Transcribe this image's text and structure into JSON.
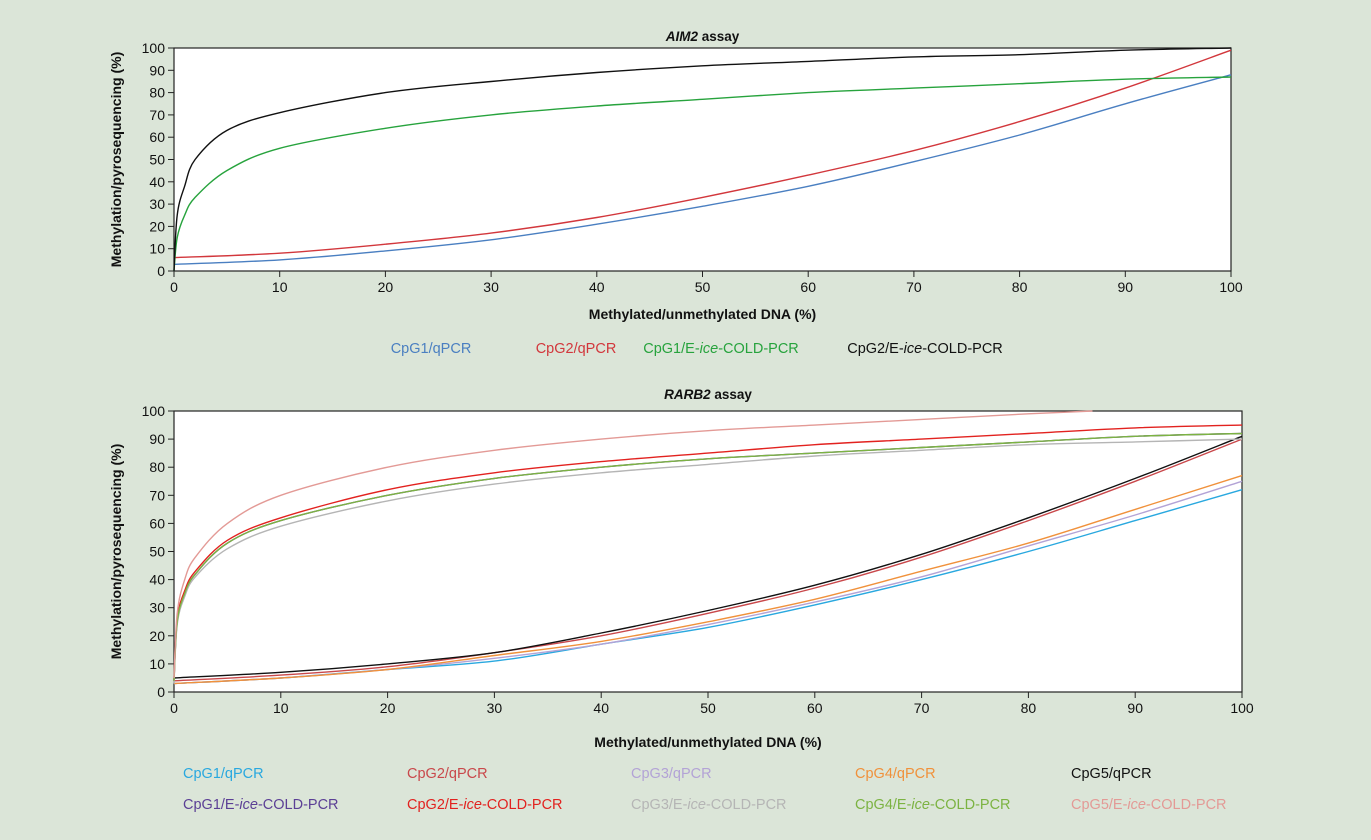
{
  "chart_data": [
    {
      "type": "line",
      "title_prefix": "AIM2",
      "title_suffix": " assay",
      "xlabel": "Methylated/unmethylated DNA (%)",
      "ylabel": "Methylation/pyrosequencing (%)",
      "xlim": [
        0,
        100
      ],
      "ylim": [
        0,
        100
      ],
      "xticks": [
        0,
        10,
        20,
        30,
        40,
        50,
        60,
        70,
        80,
        90,
        100
      ],
      "yticks": [
        0,
        10,
        20,
        30,
        40,
        50,
        60,
        70,
        80,
        90,
        100
      ],
      "grid": false,
      "legend_position": "bottom",
      "series": [
        {
          "name": "CpG1/qPCR",
          "legend_parts": [
            "CpG1/qPCR"
          ],
          "color": "#4a7fc1",
          "x": [
            0,
            10,
            20,
            30,
            40,
            50,
            60,
            70,
            80,
            90,
            100
          ],
          "y": [
            3,
            5,
            9,
            14,
            21,
            29,
            38,
            49,
            61,
            75,
            88
          ]
        },
        {
          "name": "CpG2/qPCR",
          "legend_parts": [
            "CpG2/qPCR"
          ],
          "color": "#d2373c",
          "x": [
            0,
            10,
            20,
            30,
            40,
            50,
            60,
            70,
            80,
            90,
            100
          ],
          "y": [
            6,
            8,
            12,
            17,
            24,
            33,
            43,
            54,
            67,
            82,
            99
          ]
        },
        {
          "name": "CpG1/E-ice-COLD-PCR",
          "legend_parts": [
            "CpG1/E-",
            "ice",
            "-COLD-PCR"
          ],
          "color": "#27a33d",
          "x": [
            0,
            0.3,
            1,
            2,
            5,
            10,
            20,
            30,
            40,
            50,
            60,
            70,
            80,
            90,
            100
          ],
          "y": [
            0,
            15,
            25,
            33,
            45,
            55,
            64,
            70,
            74,
            77,
            80,
            82,
            84,
            86,
            87
          ]
        },
        {
          "name": "CpG2/E-ice-COLD-PCR",
          "legend_parts": [
            "CpG2/E-",
            "ice",
            "-COLD-PCR"
          ],
          "color": "#111111",
          "x": [
            0,
            0.3,
            1,
            2,
            5,
            10,
            20,
            30,
            40,
            50,
            60,
            70,
            80,
            90,
            100
          ],
          "y": [
            0,
            25,
            38,
            50,
            63,
            71,
            80,
            85,
            89,
            92,
            94,
            96,
            97,
            99,
            100
          ]
        }
      ]
    },
    {
      "type": "line",
      "title_prefix": "RARB2",
      "title_suffix": " assay",
      "xlabel": "Methylated/unmethylated DNA (%)",
      "ylabel": "Methylation/pyrosequencing (%)",
      "xlim": [
        0,
        100
      ],
      "ylim": [
        0,
        100
      ],
      "xticks": [
        0,
        10,
        20,
        30,
        40,
        50,
        60,
        70,
        80,
        90,
        100
      ],
      "yticks": [
        0,
        10,
        20,
        30,
        40,
        50,
        60,
        70,
        80,
        90,
        100
      ],
      "grid": false,
      "legend_position": "bottom",
      "series": [
        {
          "name": "CpG1/qPCR",
          "legend_parts": [
            "CpG1/qPCR"
          ],
          "color": "#29a8df",
          "x": [
            0,
            10,
            20,
            30,
            40,
            50,
            60,
            70,
            80,
            90,
            100
          ],
          "y": [
            3,
            5,
            8,
            11,
            17,
            23,
            31,
            40,
            50,
            61,
            72
          ]
        },
        {
          "name": "CpG2/qPCR",
          "legend_parts": [
            "CpG2/qPCR"
          ],
          "color": "#c9484b",
          "x": [
            0,
            10,
            20,
            30,
            40,
            50,
            60,
            70,
            80,
            90,
            100
          ],
          "y": [
            4,
            6,
            9,
            14,
            20,
            28,
            37,
            48,
            61,
            75,
            90
          ]
        },
        {
          "name": "CpG3/qPCR",
          "legend_parts": [
            "CpG3/qPCR"
          ],
          "color": "#b3a3d6",
          "x": [
            0,
            10,
            20,
            30,
            40,
            50,
            60,
            70,
            80,
            90,
            100
          ],
          "y": [
            3,
            5,
            8,
            12,
            17,
            24,
            32,
            41,
            52,
            63,
            75
          ]
        },
        {
          "name": "CpG4/qPCR",
          "legend_parts": [
            "CpG4/qPCR"
          ],
          "color": "#f0913b",
          "x": [
            0,
            10,
            20,
            30,
            40,
            50,
            60,
            70,
            80,
            90,
            100
          ],
          "y": [
            3,
            5,
            8,
            13,
            18,
            25,
            33,
            43,
            53,
            65,
            77
          ]
        },
        {
          "name": "CpG5/qPCR",
          "legend_parts": [
            "CpG5/qPCR"
          ],
          "color": "#111111",
          "x": [
            0,
            10,
            20,
            30,
            40,
            50,
            60,
            70,
            80,
            90,
            100
          ],
          "y": [
            5,
            7,
            10,
            14,
            21,
            29,
            38,
            49,
            62,
            76,
            91
          ]
        },
        {
          "name": "CpG1/E-ice-COLD-PCR",
          "legend_parts": [
            "CpG1/E-",
            "ice",
            "-COLD-PCR"
          ],
          "color": "#5b3f95",
          "x": [
            0,
            0.3,
            1,
            2,
            5,
            10,
            20,
            30,
            40,
            50,
            60,
            70,
            80,
            90,
            100
          ],
          "y": [
            4,
            25,
            35,
            42,
            53,
            61,
            70,
            76,
            80,
            83,
            85,
            87,
            89,
            91,
            92
          ]
        },
        {
          "name": "CpG2/E-ice-COLD-PCR",
          "legend_parts": [
            "CpG2/E-",
            "ice",
            "-COLD-PCR"
          ],
          "color": "#e2221f",
          "x": [
            0,
            0.3,
            1,
            2,
            5,
            10,
            20,
            30,
            40,
            50,
            60,
            70,
            80,
            90,
            100
          ],
          "y": [
            4,
            26,
            36,
            43,
            54,
            62,
            72,
            78,
            82,
            85,
            88,
            90,
            92,
            94,
            95
          ]
        },
        {
          "name": "CpG3/E-ice-COLD-PCR",
          "legend_parts": [
            "CpG3/E-",
            "ice",
            "-COLD-PCR"
          ],
          "color": "#b5b5b5",
          "x": [
            0,
            0.3,
            1,
            2,
            5,
            10,
            20,
            30,
            40,
            50,
            60,
            70,
            80,
            90,
            100
          ],
          "y": [
            3,
            24,
            34,
            41,
            51,
            59,
            68,
            74,
            78,
            81,
            84,
            86,
            88,
            89,
            90
          ]
        },
        {
          "name": "CpG4/E-ice-COLD-PCR",
          "legend_parts": [
            "CpG4/E-",
            "ice",
            "-COLD-PCR"
          ],
          "color": "#7cb342",
          "x": [
            0,
            0.3,
            1,
            2,
            5,
            10,
            20,
            30,
            40,
            50,
            60,
            70,
            80,
            90,
            100
          ],
          "y": [
            4,
            25,
            35,
            42,
            53,
            61,
            70,
            76,
            80,
            83,
            85,
            87,
            89,
            91,
            92
          ]
        },
        {
          "name": "CpG5/E-ice-COLD-PCR",
          "legend_parts": [
            "CpG5/E-",
            "ice",
            "-COLD-PCR"
          ],
          "color": "#e39a96",
          "x": [
            0,
            0.3,
            1,
            2,
            5,
            10,
            20,
            30,
            40,
            50,
            60,
            70,
            80,
            86
          ],
          "y": [
            5,
            28,
            40,
            48,
            60,
            70,
            80,
            86,
            90,
            93,
            95,
            97,
            99,
            100
          ]
        }
      ]
    }
  ]
}
